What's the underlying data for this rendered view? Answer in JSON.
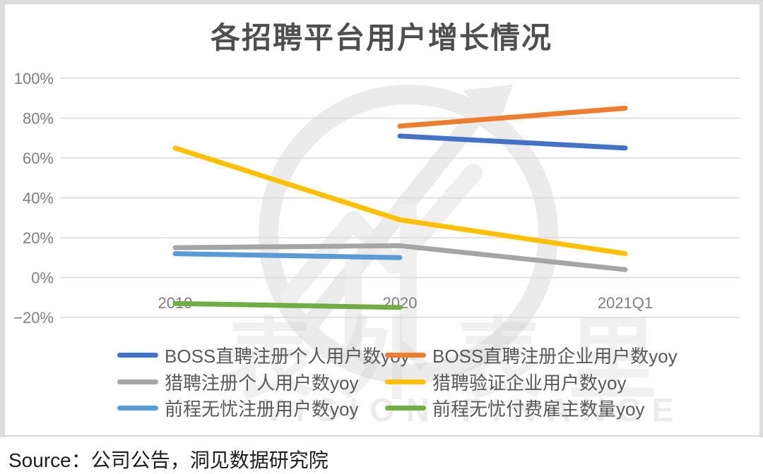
{
  "page": {
    "source_label": "Source：公司公告，洞见数据研究院"
  },
  "watermark": {
    "cn_text": "表外表里",
    "en_text": "VISION FINANCE"
  },
  "chart_data": {
    "type": "line",
    "title": "各招聘平台用户增长情况",
    "categories": [
      "2019",
      "2020",
      "2021Q1"
    ],
    "series": [
      {
        "name": "BOSS直聘注册个人用户数yoy",
        "color": "#4472C4",
        "values": [
          null,
          71,
          65
        ]
      },
      {
        "name": "BOSS直聘注册企业用户数yoy",
        "color": "#ED7D31",
        "values": [
          null,
          76,
          85
        ]
      },
      {
        "name": "猎聘注册个人用户数yoy",
        "color": "#A5A5A5",
        "values": [
          15,
          16,
          4
        ]
      },
      {
        "name": "猎聘验证企业用户数yoy",
        "color": "#FFC000",
        "values": [
          65,
          29,
          12
        ]
      },
      {
        "name": "前程无忧注册用户数yoy",
        "color": "#5B9BD5",
        "values": [
          12,
          10,
          null
        ]
      },
      {
        "name": "前程无忧付费雇主数量yoy",
        "color": "#70AD47",
        "values": [
          -13,
          -15,
          null
        ]
      }
    ],
    "ylim": [
      -20,
      100
    ],
    "yticks": [
      {
        "value": 100,
        "label": "100%"
      },
      {
        "value": 80,
        "label": "80%"
      },
      {
        "value": 60,
        "label": "60%"
      },
      {
        "value": 40,
        "label": "40%"
      },
      {
        "value": 20,
        "label": "20%"
      },
      {
        "value": 0,
        "label": "0%"
      },
      {
        "value": -20,
        "label": "−20%"
      }
    ],
    "grid": true,
    "legend_position": "bottom",
    "ylabel": "",
    "xlabel": ""
  }
}
